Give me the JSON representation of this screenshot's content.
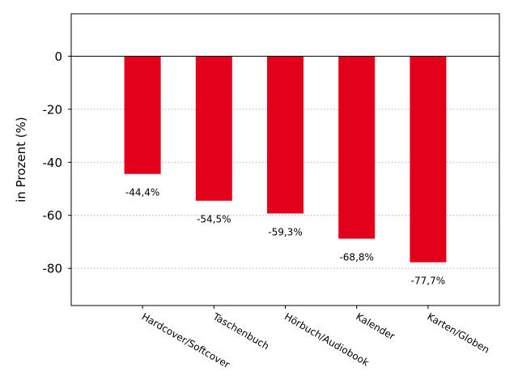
{
  "chart_data": {
    "type": "bar",
    "categories": [
      "Hardcover/Softcover",
      "Taschenbuch",
      "Hörbuch/Audiobook",
      "Kalender",
      "Karten/Globen"
    ],
    "values": [
      -44.4,
      -54.5,
      -59.3,
      -68.8,
      -77.7
    ],
    "data_labels": [
      "-44,4%",
      "-54,5%",
      "-59,3%",
      "-68,8%",
      "-77,7%"
    ],
    "title": "",
    "xlabel": "",
    "ylabel": "in Prozent (%)",
    "ylim": [
      -94,
      16
    ],
    "yticks": [
      0,
      -20,
      -40,
      -60,
      -80
    ],
    "ytick_labels": [
      "0",
      "-20",
      "-40",
      "-60",
      "-80"
    ],
    "grid": "y-dotted",
    "bar_color": "#e2001a"
  }
}
